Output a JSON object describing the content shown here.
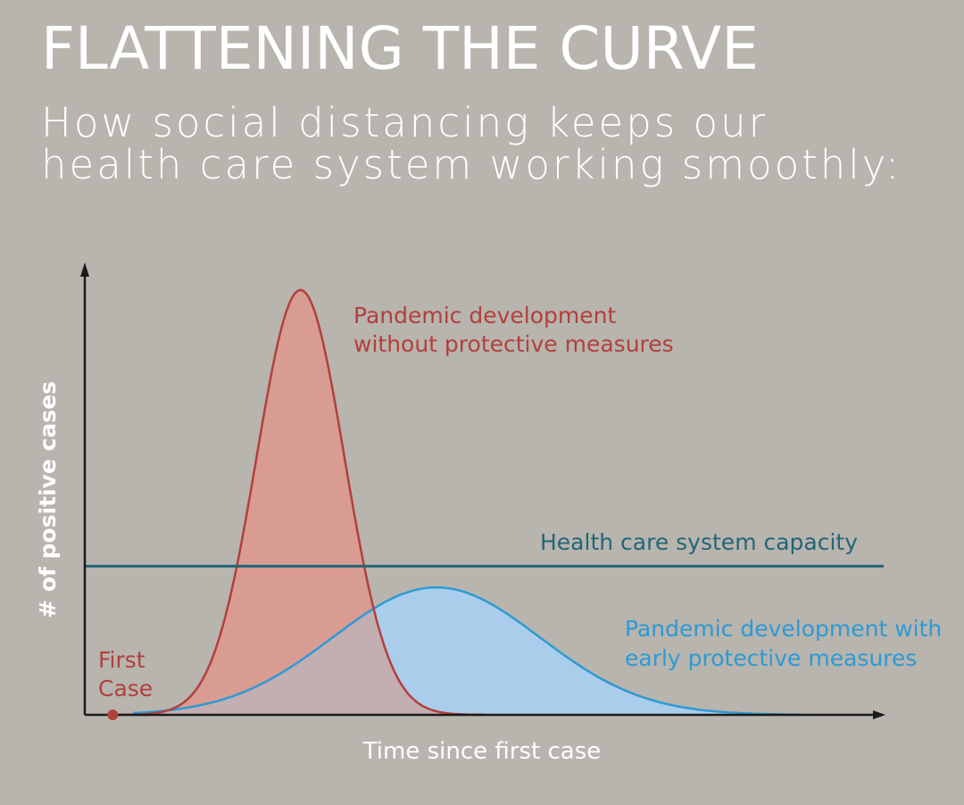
{
  "title": "FLATTENING THE CURVE",
  "subtitle_lines": [
    "How social distancing keeps our",
    "health care system working smoothly:"
  ],
  "colors": {
    "background": "#b8b4ae",
    "red_line": "#b2403d",
    "red_fill": "#d89c92",
    "blue_line": "#2d9ad4",
    "blue_fill": "#a9cdeb",
    "overlap_fill": "#c3aeb2",
    "capacity_line": "#236676",
    "axis": "#1a1a1a"
  },
  "chart_data": {
    "type": "area",
    "xlabel": "Time since first case",
    "ylabel": "# of positive cases",
    "xlim": [
      0,
      100
    ],
    "ylim": [
      0,
      100
    ],
    "grid": false,
    "series": [
      {
        "name": "Pandemic development without protective measures",
        "color": "#b2403d",
        "peak_x": 27,
        "peak_y": 100
      },
      {
        "name": "Pandemic development with early protective measures",
        "color": "#2d9ad4",
        "peak_x": 44,
        "peak_y": 30
      }
    ],
    "capacity": {
      "label": "Health care system capacity",
      "y": 35
    },
    "first_case": {
      "label_lines": [
        "First",
        "Case"
      ],
      "x": 3.5,
      "y": 0
    }
  }
}
